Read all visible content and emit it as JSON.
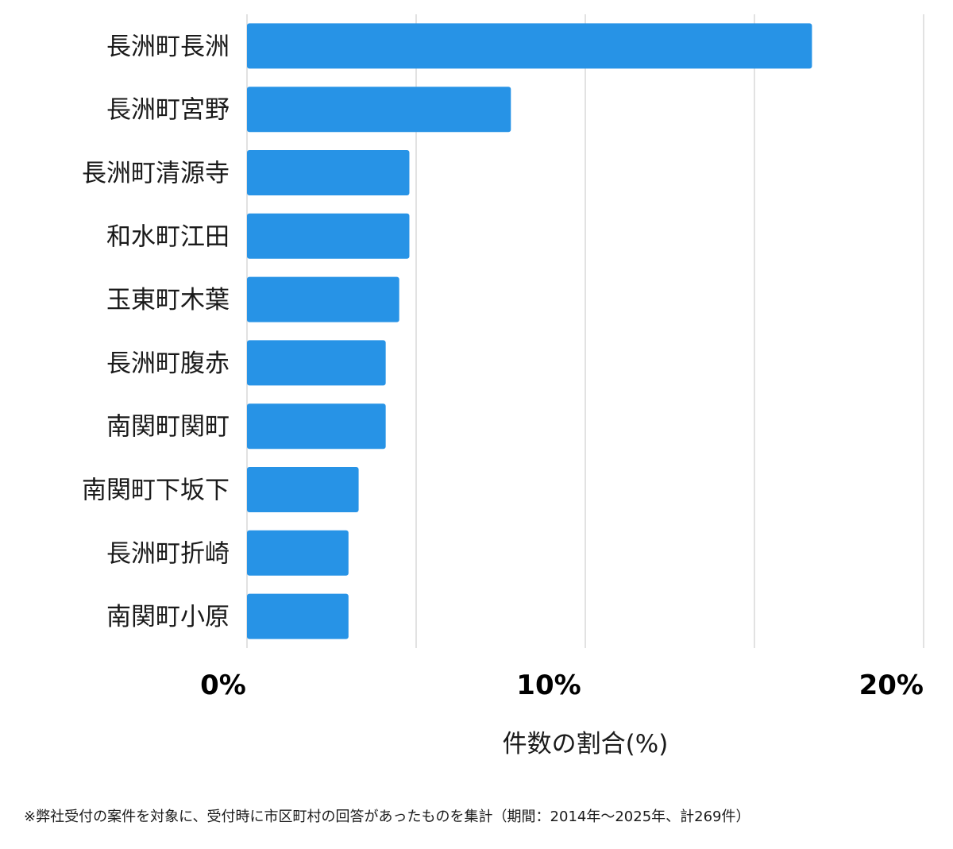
{
  "chart_data": {
    "type": "bar",
    "orientation": "horizontal",
    "categories": [
      "長洲町長洲",
      "長洲町宮野",
      "長洲町清源寺",
      "和水町江田",
      "玉東町木葉",
      "長洲町腹赤",
      "南関町関町",
      "南関町下坂下",
      "長洲町折崎",
      "南関町小原"
    ],
    "values": [
      16.7,
      7.8,
      4.8,
      4.8,
      4.5,
      4.1,
      4.1,
      3.3,
      3.0,
      3.0
    ],
    "xlim": [
      0,
      20
    ],
    "xticks": [
      0,
      10,
      20
    ],
    "tick_labels": [
      "0%",
      "10%",
      "20%"
    ],
    "grid_step": 5,
    "grid": true,
    "xlabel": "件数の割合(%)",
    "ylabel": "",
    "title": "",
    "bar_color": "#2793e6"
  },
  "footnote": "※弊社受付の案件を対象に、受付時に市区町村の回答があったものを集計（期間：2014年～2025年、計269件）"
}
